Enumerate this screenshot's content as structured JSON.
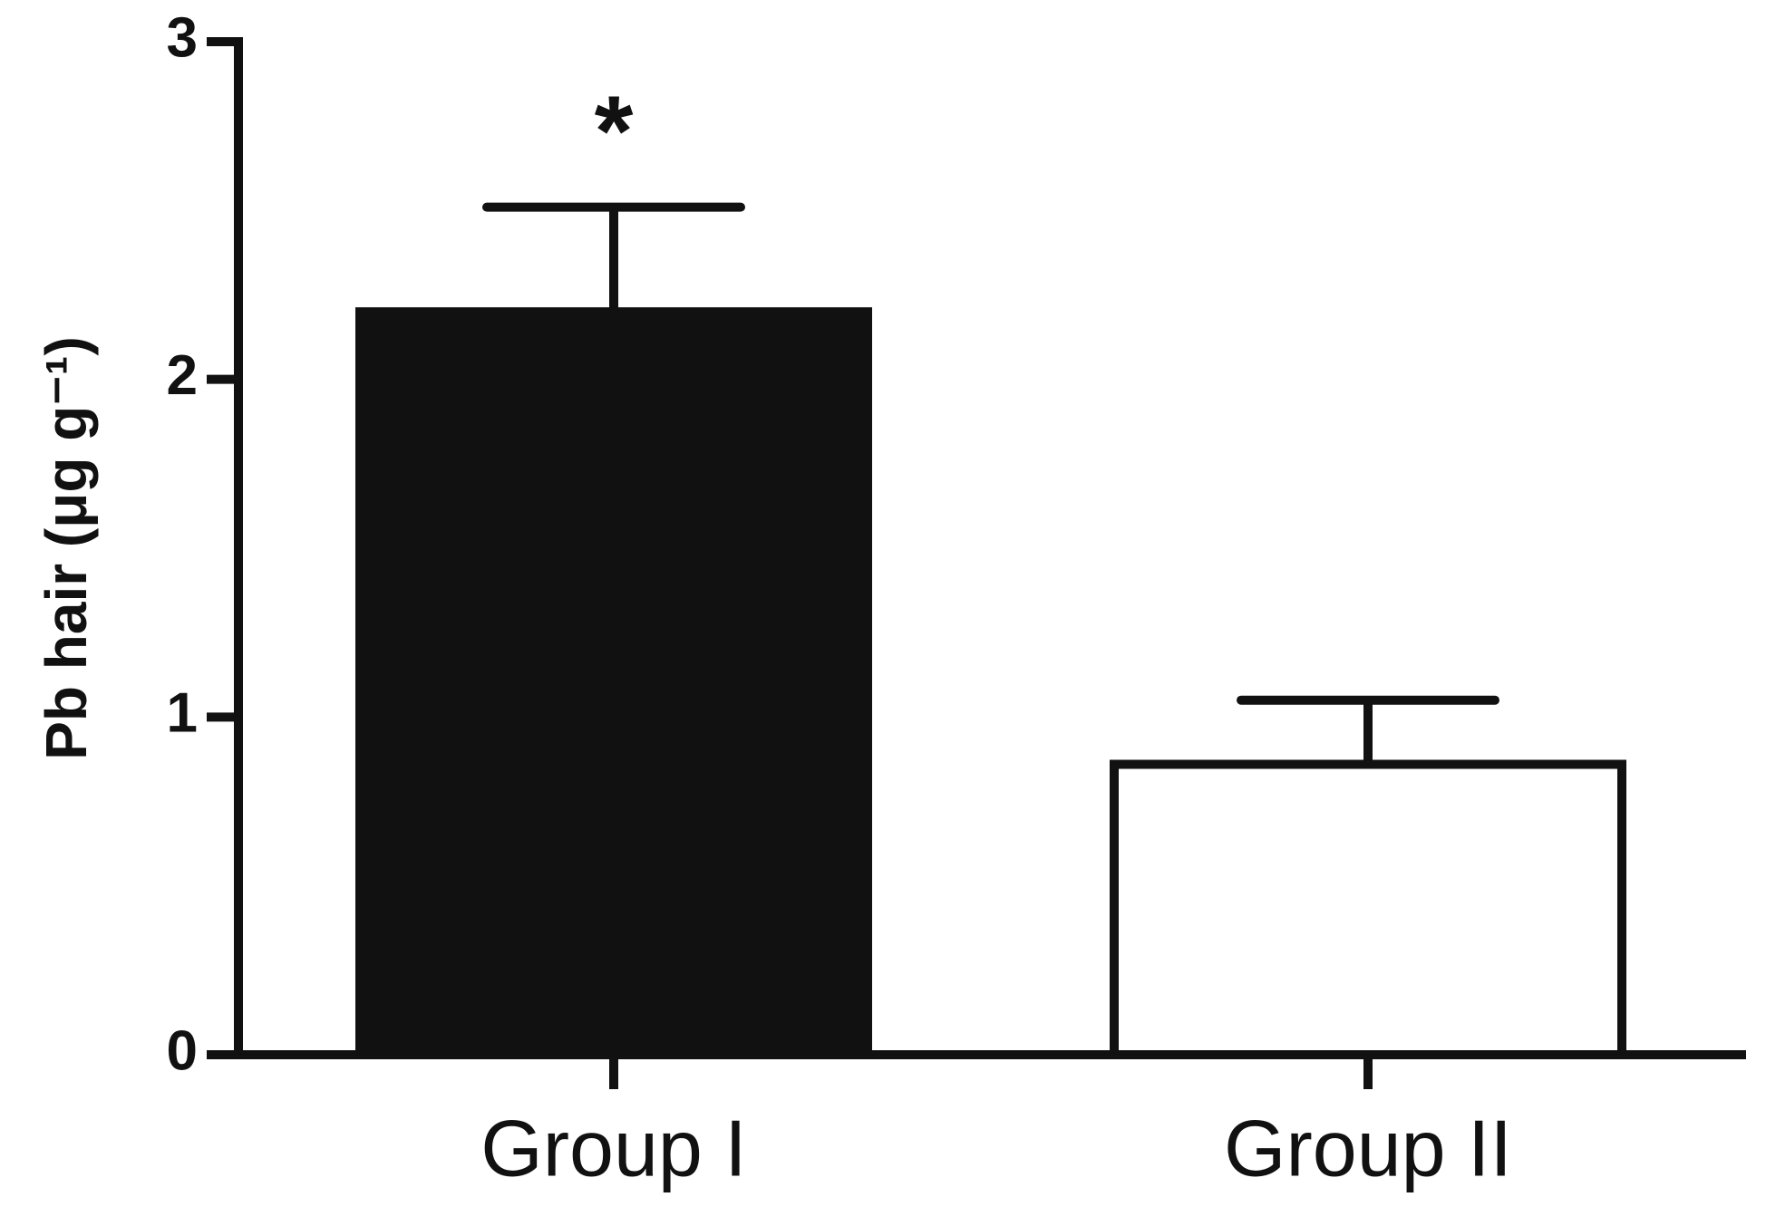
{
  "chart_data": {
    "type": "bar",
    "y_label": "Pb hair (μg g⁻¹)",
    "categories": [
      "Group I",
      "Group II"
    ],
    "values": [
      2.2,
      0.86
    ],
    "errors": [
      0.31,
      0.19
    ],
    "colors": [
      "#111111",
      "#ffffff"
    ],
    "annotation": "*",
    "ylim": [
      0,
      3
    ],
    "yticks": [
      0,
      1,
      2,
      3
    ]
  }
}
